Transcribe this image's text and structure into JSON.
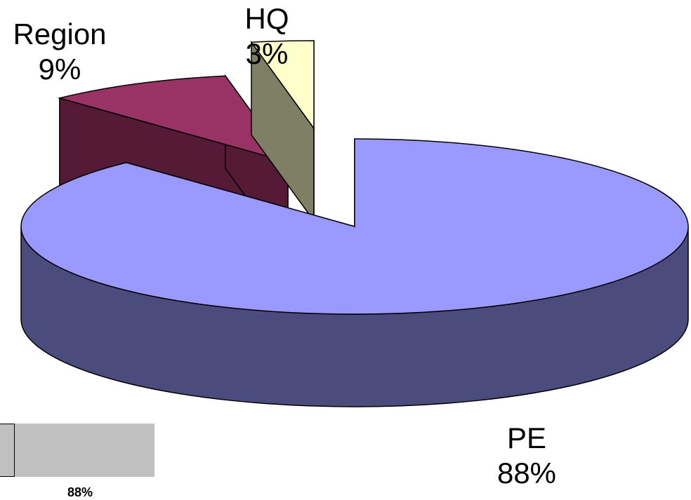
{
  "chart_data": {
    "type": "pie",
    "style": "3d-exploded",
    "title": "",
    "slices": [
      {
        "label": "PE",
        "value": 88,
        "display": "88%",
        "color": "#9999ff",
        "side_color": "#4b4b7d"
      },
      {
        "label": "Region",
        "value": 9,
        "display": "9%",
        "color": "#993366",
        "side_color": "#551a35"
      },
      {
        "label": "HQ",
        "value": 3,
        "display": "3%",
        "color": "#ffffcc",
        "side_color": "#7f7f66"
      }
    ],
    "legend": "none",
    "inset_fragment": {
      "label": "88%"
    }
  }
}
